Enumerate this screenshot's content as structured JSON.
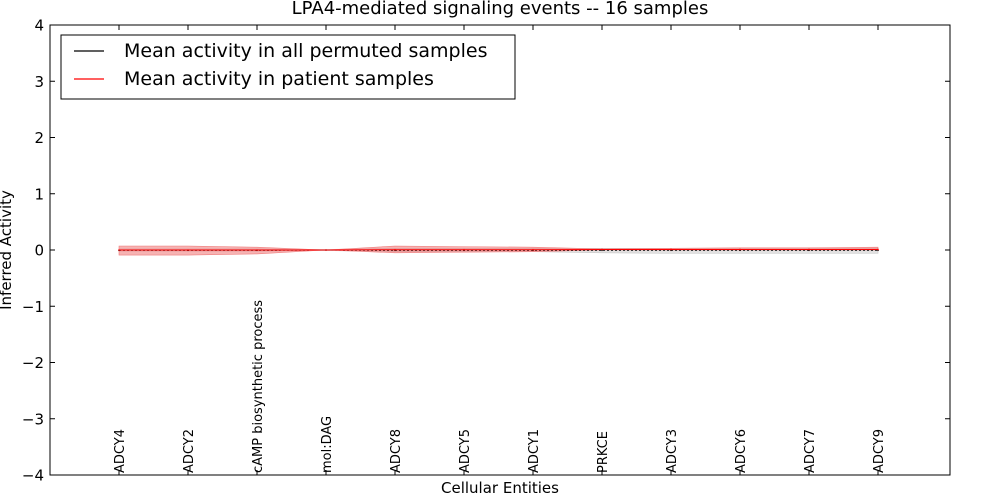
{
  "chart_data": {
    "type": "line",
    "title": "LPA4-mediated signaling events -- 16 samples",
    "xlabel": "Cellular Entities",
    "ylabel": "Inferred Activity",
    "ylim": [
      -4,
      4
    ],
    "yticks": [
      -4,
      -3,
      -2,
      -1,
      0,
      1,
      2,
      3,
      4
    ],
    "ytick_labels": [
      "−4",
      "−3",
      "−2",
      "−1",
      "0",
      "1",
      "2",
      "3",
      "4"
    ],
    "grid": false,
    "legend_position": "top-left",
    "categories": [
      "ADCY4",
      "ADCY2",
      "cAMP biosynthetic process",
      "mol:DAG",
      "ADCY8",
      "ADCY5",
      "ADCY1",
      "PRKCE",
      "ADCY3",
      "ADCY6",
      "ADCY7",
      "ADCY9"
    ],
    "series": [
      {
        "name": "Mean activity in all permuted samples",
        "color": "#000000",
        "values": [
          -0.005,
          -0.005,
          -0.005,
          0.0,
          -0.005,
          -0.005,
          -0.005,
          -0.005,
          -0.005,
          -0.005,
          -0.005,
          -0.005
        ],
        "band_lower": [
          -0.02,
          -0.02,
          -0.02,
          -0.01,
          -0.03,
          -0.03,
          -0.03,
          -0.05,
          -0.06,
          -0.06,
          -0.06,
          -0.06
        ],
        "band_upper": [
          0.02,
          0.02,
          0.02,
          0.01,
          0.03,
          0.03,
          0.03,
          0.03,
          0.03,
          0.03,
          0.03,
          0.03
        ],
        "band_color": "#c8c8c8"
      },
      {
        "name": "Mean activity in patient samples",
        "color": "#ff0000",
        "values": [
          0.0,
          0.0,
          0.0,
          0.0,
          0.005,
          0.005,
          0.005,
          0.01,
          0.01,
          0.01,
          0.01,
          0.01
        ],
        "band_lower": [
          -0.09,
          -0.09,
          -0.07,
          0.0,
          -0.05,
          -0.04,
          -0.03,
          0.0,
          0.0,
          0.0,
          0.0,
          0.0
        ],
        "band_upper": [
          0.07,
          0.07,
          0.05,
          0.0,
          0.07,
          0.06,
          0.05,
          0.02,
          0.03,
          0.04,
          0.04,
          0.05
        ],
        "band_color": "#f08080"
      }
    ]
  }
}
